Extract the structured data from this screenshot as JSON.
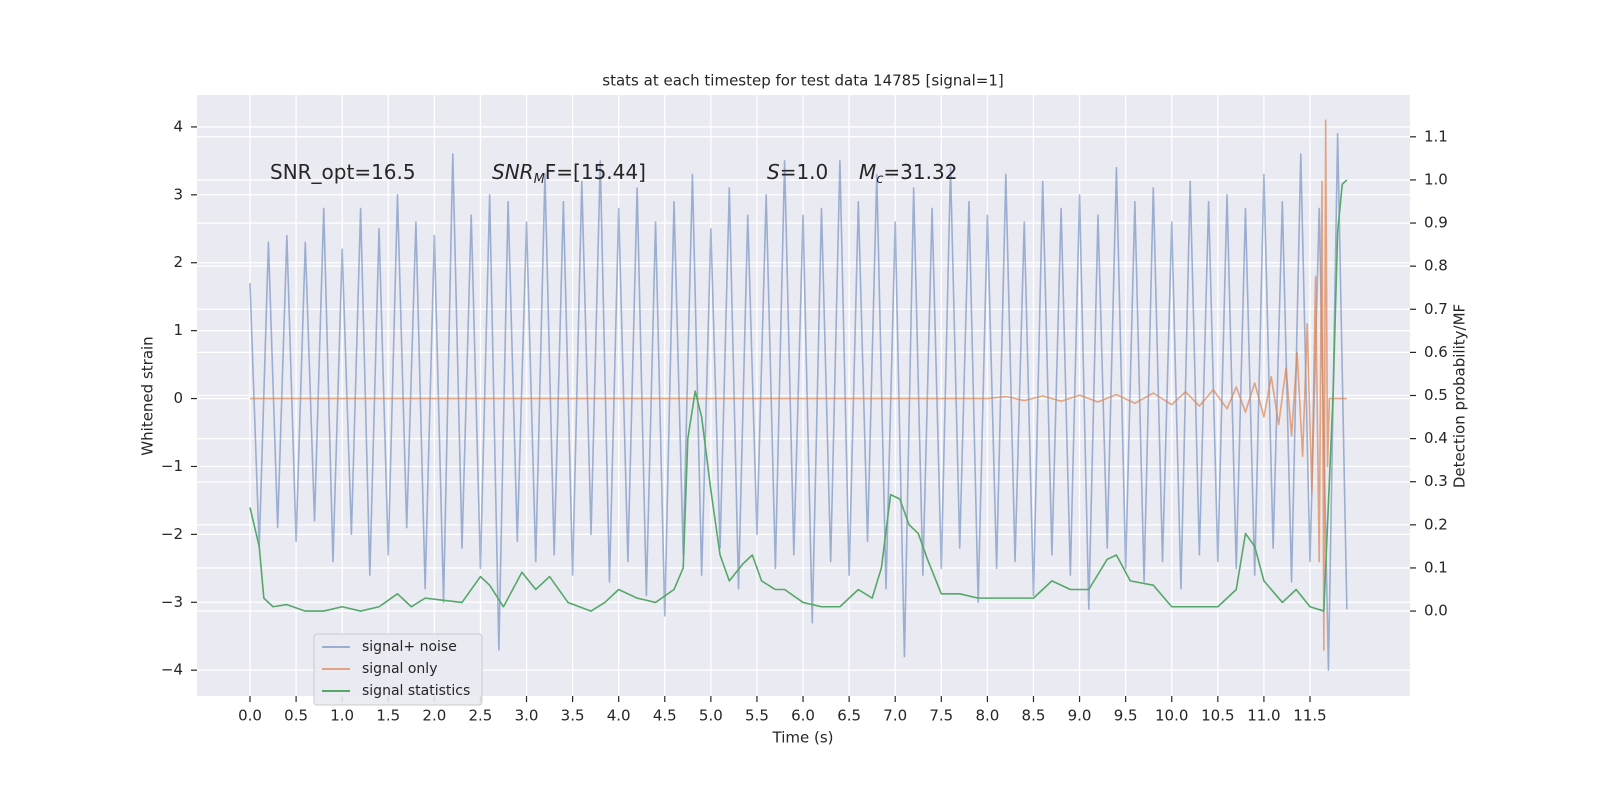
{
  "chart_data": {
    "type": "line",
    "title": "stats at each timestep for test data 14785 [signal=1]",
    "x_label": "Time (s)",
    "y_label": "Whitened strain",
    "y2_label": "Detection probability/MF",
    "xlim": [
      -0.575,
      12.585
    ],
    "ylim": [
      -4.38,
      4.47
    ],
    "y2lim": [
      -0.197,
      1.197
    ],
    "xticks": [
      {
        "value": 0,
        "label": "0.0"
      },
      0.5,
      {
        "value": 1,
        "label": "1.0"
      },
      1.5,
      {
        "value": 2,
        "label": "2.0"
      },
      2.5,
      {
        "value": 3,
        "label": "3.0"
      },
      3.5,
      {
        "value": 4,
        "label": "4.0"
      },
      4.5,
      {
        "value": 5,
        "label": "5.0"
      },
      5.5,
      {
        "value": 6,
        "label": "6.0"
      },
      6.5,
      {
        "value": 7,
        "label": "7.0"
      },
      7.5,
      {
        "value": 8,
        "label": "8.0"
      },
      8.5,
      {
        "value": 9,
        "label": "9.0"
      },
      9.5,
      {
        "value": 10,
        "label": "10.0"
      },
      10.5,
      {
        "value": 11,
        "label": "11.0"
      },
      11.5
    ],
    "yticks": [
      {
        "value": -4,
        "label": "−4"
      },
      {
        "value": -3,
        "label": "−3"
      },
      {
        "value": -2,
        "label": "−2"
      },
      {
        "value": -1,
        "label": "−1"
      },
      0,
      1,
      2,
      3,
      4
    ],
    "y2ticks": [
      {
        "value": 0,
        "label": "0.0"
      },
      0.1,
      0.2,
      0.3,
      0.4,
      0.5,
      0.6,
      0.7,
      0.8,
      0.9,
      {
        "value": 1,
        "label": "1.0"
      },
      1.1
    ],
    "grid": true,
    "legend_position": "lower left",
    "annotations": [
      {
        "main": "SNR_opt=16.5"
      },
      {
        "main": "SNR",
        "sub": "M",
        "tail": "F=[15.44]"
      },
      {
        "main": "S",
        "tail": "=1.0"
      },
      {
        "main": "M",
        "sub": "c",
        "tail": "=31.32"
      }
    ],
    "series": [
      {
        "name": "signal+ noise",
        "color": "#4c72b0",
        "opacity": 0.5,
        "x": [
          0,
          0.1,
          0.2,
          0.3,
          0.4,
          0.5,
          0.6,
          0.7,
          0.8,
          0.9,
          1,
          1.1,
          1.2,
          1.3,
          1.4,
          1.5,
          1.6,
          1.7,
          1.8,
          1.9,
          2,
          2.1,
          2.2,
          2.3,
          2.4,
          2.5,
          2.6,
          2.7,
          2.8,
          2.9,
          3,
          3.1,
          3.2,
          3.3,
          3.4,
          3.5,
          3.6,
          3.7,
          3.8,
          3.9,
          4,
          4.1,
          4.2,
          4.3,
          4.4,
          4.5,
          4.6,
          4.7,
          4.8,
          4.9,
          5,
          5.1,
          5.2,
          5.3,
          5.4,
          5.5,
          5.6,
          5.7,
          5.8,
          5.9,
          6,
          6.1,
          6.2,
          6.3,
          6.4,
          6.5,
          6.6,
          6.7,
          6.8,
          6.9,
          7,
          7.1,
          7.2,
          7.3,
          7.4,
          7.5,
          7.6,
          7.7,
          7.8,
          7.9,
          8,
          8.1,
          8.2,
          8.3,
          8.4,
          8.5,
          8.6,
          8.7,
          8.8,
          8.9,
          9,
          9.1,
          9.2,
          9.3,
          9.4,
          9.5,
          9.6,
          9.7,
          9.8,
          9.9,
          10,
          10.1,
          10.2,
          10.3,
          10.4,
          10.5,
          10.6,
          10.7,
          10.8,
          10.9,
          11,
          11.1,
          11.2,
          11.3,
          11.4,
          11.5,
          11.6,
          11.7,
          11.8,
          11.9
        ],
        "values": [
          1.7,
          -2.2,
          2.3,
          -1.9,
          2.4,
          -2.1,
          2.3,
          -1.8,
          2.8,
          -2.4,
          2.2,
          -2.0,
          2.8,
          -2.6,
          2.5,
          -2.3,
          3.0,
          -1.9,
          2.6,
          -2.8,
          2.4,
          -3.0,
          3.6,
          -2.2,
          2.7,
          -2.5,
          3.0,
          -3.7,
          2.9,
          -2.1,
          2.6,
          -2.4,
          3.3,
          -2.3,
          2.9,
          -2.6,
          3.2,
          -2.0,
          3.5,
          -2.7,
          2.8,
          -2.4,
          3.1,
          -2.9,
          2.6,
          -3.2,
          2.9,
          -2.3,
          3.3,
          -2.6,
          2.5,
          -2.2,
          3.1,
          -2.8,
          2.7,
          -2.0,
          3.0,
          -2.5,
          3.5,
          -2.3,
          2.7,
          -3.3,
          2.8,
          -2.4,
          3.5,
          -2.6,
          2.9,
          -2.1,
          3.3,
          -2.8,
          2.6,
          -3.8,
          3.1,
          -2.6,
          2.8,
          -2.5,
          3.4,
          -2.2,
          2.9,
          -3.0,
          2.7,
          -2.5,
          3.3,
          -2.4,
          2.6,
          -2.9,
          3.2,
          -2.3,
          2.8,
          -2.6,
          3.0,
          -3.1,
          2.7,
          -2.2,
          3.4,
          -2.5,
          2.9,
          -2.7,
          3.1,
          -2.4,
          2.6,
          -2.8,
          3.2,
          -2.3,
          2.9,
          -2.4,
          3.0,
          -2.5,
          2.8,
          -2.6,
          3.3,
          -2.2,
          2.9,
          -2.7,
          3.6,
          -2.4,
          2.8,
          -4.0,
          3.9,
          -3.1
        ]
      },
      {
        "name": "signal only",
        "color": "#dd8452",
        "opacity": 0.7,
        "x": [
          0,
          8.0,
          8.2,
          8.4,
          8.6,
          8.8,
          9.0,
          9.2,
          9.4,
          9.6,
          9.8,
          10.0,
          10.15,
          10.3,
          10.45,
          10.6,
          10.7,
          10.8,
          10.9,
          11.0,
          11.08,
          11.16,
          11.24,
          11.3,
          11.36,
          11.42,
          11.47,
          11.52,
          11.56,
          11.6,
          11.63,
          11.65,
          11.67,
          11.69,
          11.71,
          11.9
        ],
        "values": [
          0,
          0,
          0.03,
          -0.03,
          0.04,
          -0.04,
          0.05,
          -0.05,
          0.06,
          -0.07,
          0.08,
          -0.09,
          0.1,
          -0.11,
          0.13,
          -0.15,
          0.17,
          -0.2,
          0.23,
          -0.27,
          0.32,
          -0.38,
          0.45,
          -0.55,
          0.68,
          -0.85,
          1.1,
          -1.4,
          1.8,
          -2.4,
          3.2,
          -3.7,
          4.1,
          -1.0,
          0,
          0
        ]
      },
      {
        "name": "signal statistics",
        "color": "#55a868",
        "opacity": 1,
        "axis": "y2",
        "x": [
          0,
          0.1,
          0.15,
          0.25,
          0.4,
          0.6,
          0.8,
          1.0,
          1.2,
          1.4,
          1.6,
          1.75,
          1.9,
          2.1,
          2.3,
          2.5,
          2.6,
          2.75,
          2.95,
          3.1,
          3.25,
          3.45,
          3.7,
          3.85,
          4.0,
          4.2,
          4.4,
          4.6,
          4.7,
          4.75,
          4.83,
          4.9,
          5.0,
          5.1,
          5.2,
          5.35,
          5.45,
          5.55,
          5.7,
          5.8,
          6.0,
          6.2,
          6.4,
          6.6,
          6.75,
          6.85,
          6.95,
          7.05,
          7.15,
          7.25,
          7.35,
          7.5,
          7.7,
          7.9,
          8.1,
          8.3,
          8.5,
          8.7,
          8.9,
          9.1,
          9.3,
          9.4,
          9.55,
          9.8,
          10.0,
          10.2,
          10.5,
          10.7,
          10.8,
          10.9,
          11.0,
          11.2,
          11.35,
          11.5,
          11.65,
          11.75,
          11.8,
          11.85,
          11.9
        ],
        "values": [
          0.24,
          0.15,
          0.03,
          0.01,
          0.015,
          0,
          0,
          0.01,
          0,
          0.01,
          0.04,
          0.01,
          0.03,
          0.025,
          0.02,
          0.08,
          0.06,
          0.01,
          0.09,
          0.05,
          0.08,
          0.02,
          0,
          0.02,
          0.05,
          0.03,
          0.02,
          0.05,
          0.1,
          0.4,
          0.51,
          0.45,
          0.28,
          0.13,
          0.07,
          0.11,
          0.13,
          0.07,
          0.05,
          0.05,
          0.02,
          0.01,
          0.01,
          0.05,
          0.03,
          0.1,
          0.27,
          0.26,
          0.2,
          0.18,
          0.12,
          0.04,
          0.04,
          0.03,
          0.03,
          0.03,
          0.03,
          0.07,
          0.05,
          0.05,
          0.12,
          0.13,
          0.07,
          0.06,
          0.01,
          0.01,
          0.01,
          0.05,
          0.18,
          0.15,
          0.07,
          0.02,
          0.05,
          0.01,
          0,
          0.5,
          0.88,
          0.99,
          1.0
        ]
      }
    ]
  }
}
